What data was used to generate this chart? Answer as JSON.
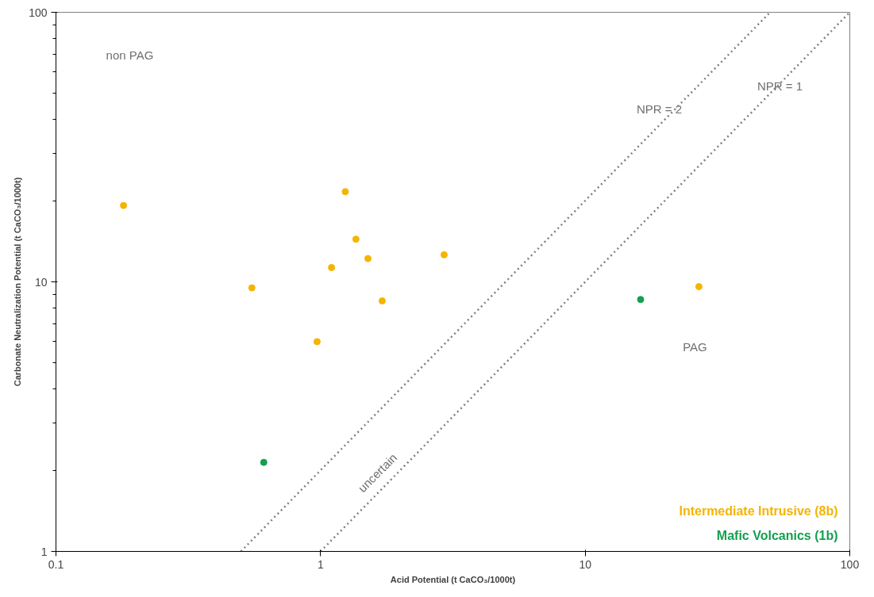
{
  "chart_data": {
    "type": "scatter",
    "xlabel": "Acid Potential (t CaCO₃/1000t)",
    "ylabel": "Carbonate Neutralization Potential (t CaCO₃/1000t)",
    "log": "xy",
    "xlim": [
      0.1,
      100
    ],
    "ylim": [
      1,
      100
    ],
    "xticks": [
      0.1,
      1,
      10,
      100
    ],
    "yticks": [
      1,
      10,
      100
    ],
    "grid": false,
    "legend": "bottom right",
    "marker": "circle",
    "series": [
      {
        "name": "Intermediate Intrusive (8b)",
        "color": "#f5b400",
        "x": [
          0.18,
          0.55,
          0.97,
          1.1,
          1.24,
          1.36,
          1.51,
          1.71,
          2.93,
          26.9
        ],
        "values": [
          19.2,
          9.5,
          6.0,
          11.3,
          21.6,
          14.4,
          12.2,
          8.5,
          12.6,
          9.6
        ]
      },
      {
        "name": "Mafic Volcanics (1b)",
        "color": "#13a04f",
        "x": [
          0.61,
          16.2
        ],
        "values": [
          2.14,
          8.6
        ]
      },
      {
        "type": "line",
        "color": "#808080",
        "line_style": "dotted",
        "marker": "none",
        "x": [
          0.5,
          50
        ],
        "values": [
          1,
          100
        ]
      },
      {
        "type": "line",
        "color": "#808080",
        "line_style": "dotted",
        "marker": "none",
        "x": [
          1,
          100
        ],
        "values": [
          1,
          100
        ]
      }
    ],
    "annotations": [
      "non PAG",
      "NPR = 2",
      "NPR = 1",
      "PAG",
      "uncertain"
    ]
  }
}
